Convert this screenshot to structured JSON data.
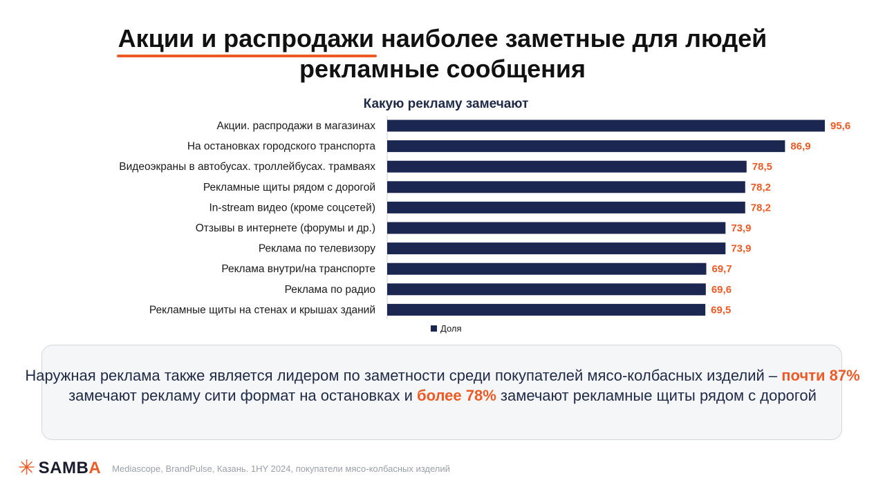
{
  "title": {
    "highlight": "Акции и распродажи",
    "rest_line1": " наиболее заметные для людей",
    "line2": "рекламные сообщения"
  },
  "colors": {
    "bar": "#1b2651",
    "value_label": "#ee5a24",
    "accent": "#ee5a24",
    "text": "#1f2a48"
  },
  "chart_data": {
    "type": "bar",
    "orientation": "horizontal",
    "title": "Какую рекламу замечают",
    "categories": [
      "Акции. распродажи в магазинах",
      "На остановках городского транспорта",
      "Видеоэкраны в автобусах. троллейбусах. трамваях",
      "Рекламные щиты рядом с дорогой",
      "In-stream видео (кроме соцсетей)",
      "Отзывы в интернете (форумы и др.)",
      "Реклама по телевизору",
      "Реклама внутри/на транспорте",
      "Реклама по радио",
      "Рекламные щиты на стенах и крышах зданий"
    ],
    "series": [
      {
        "name": "Доля",
        "values": [
          95.6,
          86.9,
          78.5,
          78.2,
          78.2,
          73.9,
          73.9,
          69.7,
          69.6,
          69.5
        ],
        "labels": [
          "95,6",
          "86,9",
          "78,5",
          "78,2",
          "78,2",
          "73,9",
          "73,9",
          "69,7",
          "69,6",
          "69,5"
        ]
      }
    ],
    "xlim": [
      0,
      95.6
    ],
    "legend": "bottom",
    "grid": false
  },
  "note": {
    "part1": "Наружная реклама также является лидером по заметности среди покупателей мясо-колбасных изделий – ",
    "accent1": "почти 87%",
    "part2": " замечают рекламу сити формат на остановках и ",
    "accent2": "более 78%",
    "part3": " замечают рекламные щиты рядом с дорогой"
  },
  "footer": {
    "logo_main": "SAMB",
    "logo_accent": "A",
    "logo_icon": "asterisk-icon",
    "source": "Mediascope, BrandPulse, Казань. 1HY 2024, покупатели мясо-колбасных изделий"
  }
}
